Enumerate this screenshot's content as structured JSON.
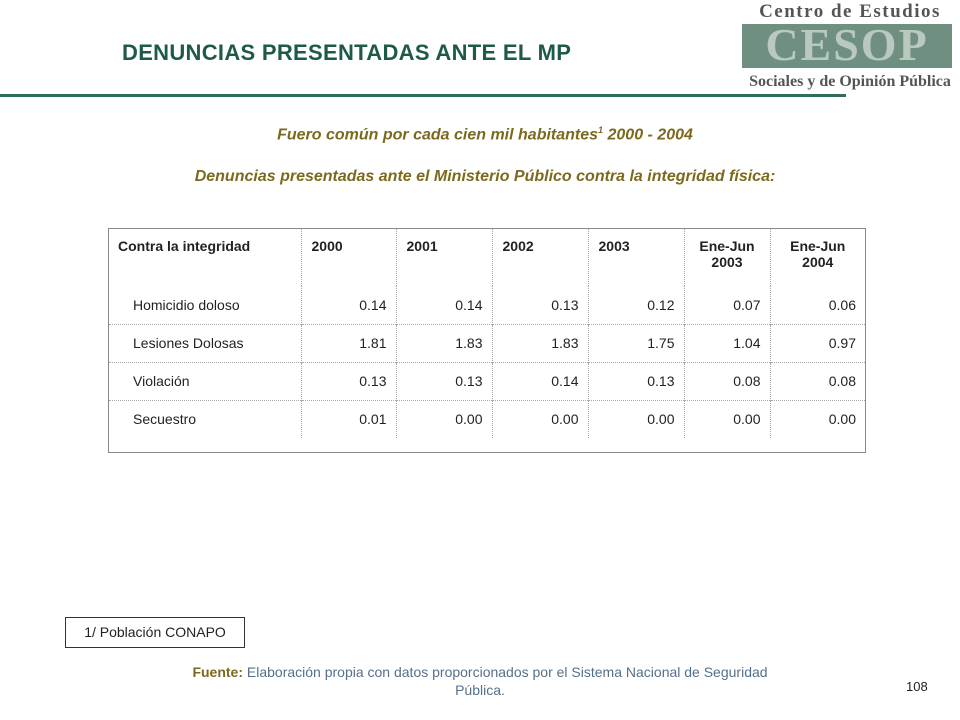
{
  "header": {
    "title": "DENUNCIAS PRESENTADAS ANTE EL MP",
    "logo": {
      "top": "Centro de Estudios",
      "mark": "CESOP",
      "bottom": "Sociales y de Opinión Pública"
    }
  },
  "subtitle": {
    "text": "Fuero común por cada cien mil habitantes",
    "sup": "1",
    "tail": " 2000 - 2004"
  },
  "subtitle2": "Denuncias presentadas ante el Ministerio Público contra la integridad física:",
  "table": {
    "columns": [
      "Contra la integridad",
      "2000",
      "2001",
      "2002",
      "2003",
      "Ene-Jun 2003",
      "Ene-Jun 2004"
    ],
    "rows": [
      [
        "Homicidio doloso",
        "0.14",
        "0.14",
        "0.13",
        "0.12",
        "0.07",
        "0.06"
      ],
      [
        "Lesiones Dolosas",
        "1.81",
        "1.83",
        "1.83",
        "1.75",
        "1.04",
        "0.97"
      ],
      [
        "Violación",
        "0.13",
        "0.13",
        "0.14",
        "0.13",
        "0.08",
        "0.08"
      ],
      [
        "Secuestro",
        "0.01",
        "0.00",
        "0.00",
        "0.00",
        "0.00",
        "0.00"
      ]
    ]
  },
  "footnote": "1/ Población CONAPO",
  "source": {
    "label": "Fuente:",
    "text": "Elaboración propia con datos proporcionados por el Sistema Nacional de Seguridad Pública."
  },
  "page_number": "108"
}
